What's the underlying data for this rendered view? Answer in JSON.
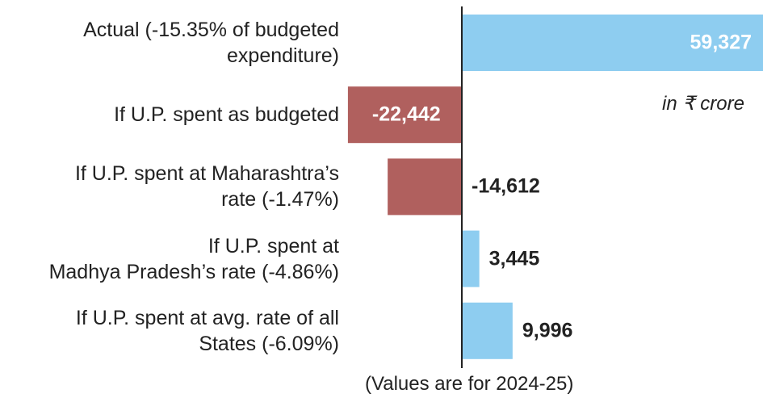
{
  "chart_data": {
    "type": "bar",
    "orientation": "horizontal",
    "categories": [
      "Actual (-15.35% of budgeted\nexpenditure)",
      "If U.P. spent as budgeted",
      "If U.P. spent at Maharashtra’s\nrate (-1.47%)",
      "If U.P. spent at\nMadhya Pradesh’s rate (-4.86%)",
      "If U.P. spent at avg. rate of all\nStates (-6.09%)"
    ],
    "values": [
      59327,
      -22442,
      -14612,
      3445,
      9996
    ],
    "value_labels": [
      "59,327",
      "-22,442",
      "-14,612",
      "3,445",
      "9,996"
    ],
    "colors": [
      "#8ecdf0",
      "#b0605e",
      "#b0605e",
      "#8ecdf0",
      "#8ecdf0"
    ],
    "annotation": "in ₹ crore",
    "footnote": "(Values are for 2024-25)"
  }
}
